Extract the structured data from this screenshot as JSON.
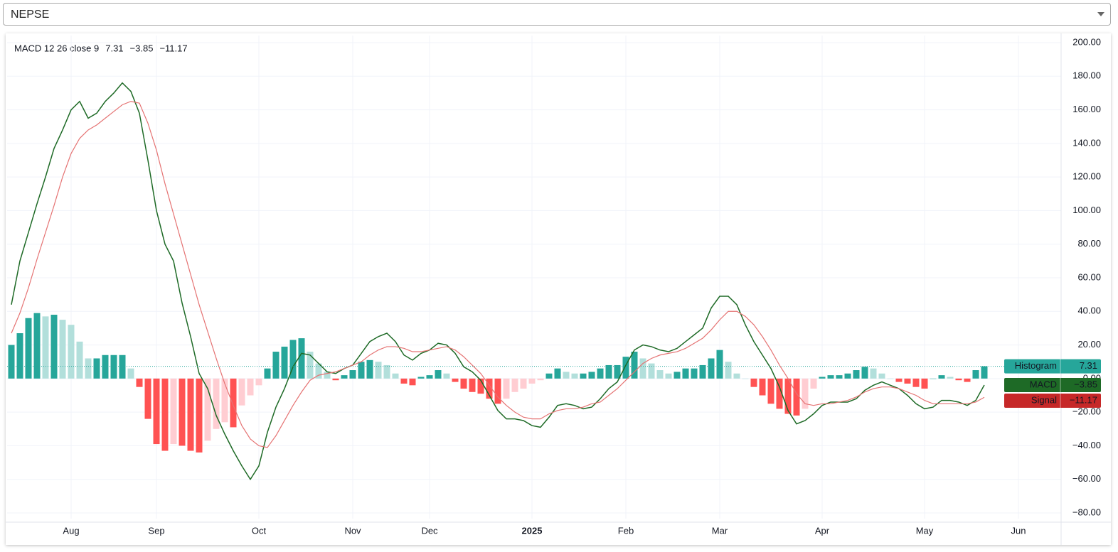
{
  "symbol": "NEPSE",
  "chart_data": {
    "type": "macd",
    "legend_title": "MACD 12 26 close 9",
    "categories": [
      null,
      null,
      null,
      null,
      null,
      null,
      null,
      "Aug",
      null,
      null,
      null,
      null,
      null,
      null,
      null,
      null,
      null,
      "Sep",
      null,
      null,
      null,
      null,
      null,
      null,
      null,
      null,
      null,
      null,
      null,
      "Oct",
      null,
      null,
      null,
      null,
      null,
      null,
      null,
      null,
      null,
      null,
      "Nov",
      null,
      null,
      null,
      null,
      null,
      null,
      null,
      null,
      "Dec",
      null,
      null,
      null,
      null,
      null,
      null,
      null,
      null,
      null,
      null,
      null,
      "2025",
      null,
      null,
      null,
      null,
      null,
      null,
      null,
      null,
      null,
      null,
      "Feb",
      null,
      null,
      null,
      null,
      null,
      null,
      null,
      null,
      null,
      null,
      "Mar",
      null,
      null,
      null,
      null,
      null,
      null,
      null,
      null,
      null,
      null,
      null,
      "Apr",
      null,
      null,
      null,
      null,
      null,
      null,
      null,
      null,
      null,
      null,
      null,
      "May",
      null,
      null,
      null,
      null,
      null,
      null,
      null,
      null,
      null,
      null,
      "Jun"
    ],
    "series": [
      {
        "name": "Histogram",
        "kind": "histogram",
        "color": "#26a69a",
        "shades": {
          "rising_positive": "#26a69a",
          "falling_positive": "#b2dfdb",
          "falling_negative": "#ff5252",
          "rising_negative": "#ffcdd2"
        },
        "values": [
          20,
          27,
          36,
          39,
          37,
          38,
          35,
          32,
          22,
          12,
          12,
          14,
          14,
          14,
          6,
          -5,
          -24,
          -39,
          -43,
          -39,
          -40,
          -43,
          -44,
          -37,
          -30,
          -26,
          -29,
          -16,
          -10,
          -4,
          6,
          16,
          19,
          23,
          24,
          16,
          9,
          4,
          -1,
          2,
          5,
          10,
          11,
          10,
          8,
          3,
          -3,
          -4,
          1,
          2,
          5,
          3,
          -2,
          -6,
          -8,
          -9,
          -12,
          -15,
          -12,
          -8,
          -6,
          -3,
          -1,
          3,
          6,
          4,
          3,
          3,
          4,
          6,
          8,
          8,
          13,
          16,
          12,
          9,
          5,
          3,
          4,
          6,
          6,
          8,
          12,
          17,
          10,
          3,
          0,
          -5,
          -10,
          -15,
          -18,
          -21,
          -22,
          -18,
          -6,
          1,
          2,
          2,
          3,
          5,
          7,
          6,
          3,
          0,
          -2,
          -3,
          -5,
          -6,
          0,
          2,
          1,
          -1,
          -2,
          5,
          7.31,
          null,
          null,
          null,
          null
        ]
      },
      {
        "name": "MACD",
        "kind": "line",
        "color": "#1e6a26",
        "badge_color": "#1e6a26",
        "values": [
          44,
          70,
          87,
          104,
          120,
          137,
          148,
          160,
          165,
          155,
          158,
          165,
          170,
          176,
          171,
          158,
          130,
          100,
          80,
          70,
          45,
          25,
          3,
          -6,
          -22,
          -33,
          -43,
          -52,
          -60,
          -52,
          -32,
          -17,
          -6,
          7,
          15,
          14,
          9,
          4,
          3,
          6,
          8,
          15,
          22,
          25,
          27,
          22,
          14,
          11,
          15,
          17,
          21,
          20,
          15,
          7,
          4,
          -1,
          -10,
          -19,
          -24,
          -24,
          -25,
          -28,
          -29,
          -23,
          -16,
          -15,
          -16,
          -18,
          -17,
          -12,
          -6,
          -2,
          8,
          17,
          20,
          19,
          17,
          16,
          18,
          22,
          26,
          30,
          42,
          49,
          49,
          44,
          32,
          22,
          14,
          6,
          -5,
          -19,
          -27,
          -25,
          -21,
          -16,
          -14,
          -14,
          -14,
          -12,
          -7,
          -4,
          -2,
          -4,
          -6,
          -10,
          -15,
          -18,
          -17,
          -13,
          -13,
          -14,
          -16,
          -13,
          -3.85,
          null,
          null,
          null,
          null
        ],
        "value_labels": {
          "114": "−3.85"
        }
      },
      {
        "name": "Signal",
        "kind": "line",
        "color": "#e57373",
        "badge_color": "#c62828",
        "values": [
          27,
          39,
          54,
          71,
          87,
          103,
          120,
          134,
          143,
          148,
          151,
          155,
          159,
          163,
          165,
          164,
          152,
          136,
          116,
          98,
          80,
          62,
          44,
          28,
          12,
          -3,
          -16,
          -28,
          -36,
          -40,
          -41,
          -34,
          -25,
          -16,
          -8,
          -1,
          2,
          3,
          4,
          6,
          8,
          10,
          14,
          17,
          19,
          19,
          18,
          16,
          16,
          17,
          18,
          19,
          17,
          13,
          8,
          3,
          -4,
          -11,
          -16,
          -20,
          -23,
          -24,
          -24,
          -21,
          -19,
          -18,
          -18,
          -17,
          -15,
          -14,
          -10,
          -6,
          -1,
          4,
          9,
          12,
          14,
          15,
          16,
          18,
          21,
          24,
          29,
          35,
          40,
          40,
          37,
          32,
          25,
          17,
          8,
          0,
          -9,
          -15,
          -16,
          -15,
          -15,
          -14,
          -13,
          -11,
          -8,
          -6,
          -5,
          -5,
          -6,
          -8,
          -10,
          -13,
          -15,
          -15,
          -15,
          -15,
          -15,
          -14,
          -11.17,
          null,
          null,
          null,
          null
        ],
        "value_labels": {
          "114": "−11.17"
        }
      }
    ],
    "ylim": [
      -80,
      200
    ],
    "yticks": [
      {
        "value": 200,
        "label": "200.00"
      },
      {
        "value": 180,
        "label": "180.00"
      },
      {
        "value": 160,
        "label": "160.00"
      },
      {
        "value": 140,
        "label": "140.00"
      },
      {
        "value": 120,
        "label": "120.00"
      },
      {
        "value": 100,
        "label": "100.00"
      },
      {
        "value": 80,
        "label": "80.00"
      },
      {
        "value": 60,
        "label": "60.00"
      },
      {
        "value": 40,
        "label": "40.00"
      },
      {
        "value": 20,
        "label": "20.00"
      },
      {
        "value": 0,
        "label": "0.00"
      },
      {
        "value": -20,
        "label": "−20.00"
      },
      {
        "value": -40,
        "label": "−40.00"
      },
      {
        "value": -60,
        "label": "−60.00"
      },
      {
        "value": -80,
        "label": "−80.00"
      }
    ],
    "bold_categories": [
      "2025"
    ],
    "grid": true
  }
}
